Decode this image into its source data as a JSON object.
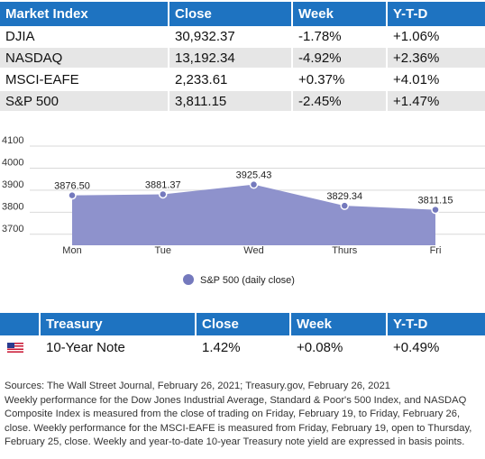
{
  "market_table": {
    "headers": [
      "Market Index",
      "Close",
      "Week",
      "Y-T-D"
    ],
    "rows": [
      [
        "DJIA",
        "30,932.37",
        "-1.78%",
        "+1.06%"
      ],
      [
        "NASDAQ",
        "13,192.34",
        "-4.92%",
        "+2.36%"
      ],
      [
        "MSCI-EAFE",
        "2,233.61",
        "+0.37%",
        "+4.01%"
      ],
      [
        "S&P 500",
        "3,811.15",
        "-2.45%",
        "+1.47%"
      ]
    ]
  },
  "chart_data": {
    "type": "area",
    "categories": [
      "Mon",
      "Tue",
      "Wed",
      "Thurs",
      "Fri"
    ],
    "series": [
      {
        "name": "S&P 500 (daily close)",
        "values": [
          3876.5,
          3881.37,
          3925.43,
          3829.34,
          3811.15
        ]
      }
    ],
    "value_labels": [
      "3876.50",
      "3881.37",
      "3925.43",
      "3829.34",
      "3811.15"
    ],
    "y_ticks": [
      3700,
      3800,
      3900,
      4000,
      4100
    ],
    "ylim": [
      3650,
      4100
    ],
    "grid": true,
    "legend": "bottom-center",
    "colors": {
      "fill": "#8e92cc",
      "marker": "#7479bd",
      "grid": "#d9d9d9"
    }
  },
  "treasury_table": {
    "headers": [
      "",
      "Treasury",
      "Close",
      "Week",
      "Y-T-D"
    ],
    "row": {
      "flag_icon": "us-flag-icon",
      "label": "10-Year Note",
      "close": "1.42%",
      "week": "+0.08%",
      "ytd": "+0.49%"
    }
  },
  "notes": [
    "Sources: The Wall Street Journal, February 26, 2021; Treasury.gov, February 26, 2021",
    "Weekly performance for the Dow Jones Industrial Average, Standard & Poor's 500 Index, and NASDAQ Composite Index is measured from the close of trading on Friday, February 19, to Friday, February 26, close. Weekly performance for the MSCI-EAFE is measured from Friday, February 19, open to Thursday, February 25, close. Weekly and year-to-date 10-year Treasury note yield are expressed in basis points."
  ]
}
